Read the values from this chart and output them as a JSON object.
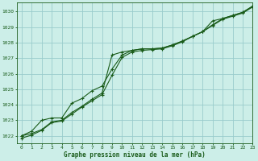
{
  "title": "Graphe pression niveau de la mer (hPa)",
  "bg_color": "#cceee8",
  "grid_color": "#99cccc",
  "line_color": "#1a5c1a",
  "xlim": [
    -0.5,
    23
  ],
  "ylim": [
    1021.5,
    1030.6
  ],
  "yticks": [
    1022,
    1023,
    1024,
    1025,
    1026,
    1027,
    1028,
    1029,
    1030
  ],
  "xticks": [
    0,
    1,
    2,
    3,
    4,
    5,
    6,
    7,
    8,
    9,
    10,
    11,
    12,
    13,
    14,
    15,
    16,
    17,
    18,
    19,
    20,
    21,
    22,
    23
  ],
  "series1_x": [
    0,
    1,
    2,
    3,
    4,
    5,
    6,
    7,
    8,
    9,
    10,
    11,
    12,
    13,
    14,
    15,
    16,
    17,
    18,
    19,
    20,
    21,
    22,
    23
  ],
  "series1_y": [
    1022.0,
    1022.15,
    1022.4,
    1022.9,
    1023.0,
    1023.5,
    1023.9,
    1024.35,
    1024.75,
    1027.2,
    1027.4,
    1027.5,
    1027.6,
    1027.6,
    1027.65,
    1027.85,
    1028.1,
    1028.4,
    1028.7,
    1029.4,
    1029.55,
    1029.75,
    1029.95,
    1030.35
  ],
  "series2_x": [
    0,
    1,
    2,
    3,
    4,
    5,
    6,
    7,
    8,
    9,
    10,
    11,
    12,
    13,
    14,
    15,
    16,
    17,
    18,
    19,
    20,
    21,
    22,
    23
  ],
  "series2_y": [
    1022.0,
    1022.3,
    1023.0,
    1023.15,
    1023.15,
    1024.1,
    1024.4,
    1024.9,
    1025.2,
    1026.3,
    1027.2,
    1027.5,
    1027.6,
    1027.6,
    1027.65,
    1027.85,
    1028.1,
    1028.4,
    1028.7,
    1029.15,
    1029.55,
    1029.75,
    1029.95,
    1030.35
  ],
  "series3_x": [
    0,
    1,
    2,
    3,
    4,
    5,
    6,
    7,
    8,
    9,
    10,
    11,
    12,
    13,
    14,
    15,
    16,
    17,
    18,
    19,
    20,
    21,
    22,
    23
  ],
  "series3_y": [
    1021.85,
    1022.05,
    1022.35,
    1022.85,
    1022.95,
    1023.4,
    1023.85,
    1024.25,
    1024.65,
    1025.9,
    1027.05,
    1027.4,
    1027.5,
    1027.55,
    1027.6,
    1027.8,
    1028.05,
    1028.4,
    1028.7,
    1029.1,
    1029.5,
    1029.7,
    1029.9,
    1030.3
  ]
}
